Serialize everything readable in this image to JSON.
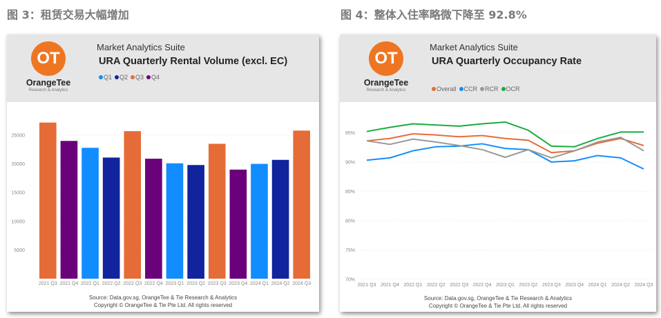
{
  "figures": [
    {
      "label": "图 3：租赁交易大幅增加",
      "suite": "Market Analytics Suite",
      "brand": "OrangeTee",
      "brand_sub": "Research & Analytics",
      "logo_text": "OT",
      "source": "Source: Data.gov.sg, OrangeTee & Tie Research & Analytics",
      "copyright": "Copyright © OrangeTee & Tie Pte Ltd. All rights reserved"
    },
    {
      "label": "图 4：整体入住率略微下降至 92.8%",
      "suite": "Market Analytics Suite",
      "brand": "OrangeTee",
      "brand_sub": "Research & Analytics",
      "logo_text": "OT",
      "source": "Source: Data.gov.sg, OrangeTee & Tie Research & Analytics",
      "copyright": "Copyright © OrangeTee & Tie Pte Ltd. All rights reserved"
    }
  ],
  "chart_data": [
    {
      "type": "bar",
      "title": "URA Quarterly Rental Volume (excl. EC)",
      "categories": [
        "2021 Q3",
        "2021 Q4",
        "2022 Q1",
        "2022 Q2",
        "2022 Q3",
        "2022 Q4",
        "2023 Q1",
        "2023 Q2",
        "2023 Q3",
        "2023 Q4",
        "2024 Q1",
        "2024 Q2",
        "2024 Q3"
      ],
      "values": [
        27200,
        24000,
        22800,
        21100,
        25700,
        20900,
        20100,
        19800,
        23500,
        19000,
        20000,
        20700,
        25800
      ],
      "legend": [
        {
          "name": "Q1",
          "color": "#118dff"
        },
        {
          "name": "Q2",
          "color": "#12239e"
        },
        {
          "name": "Q3",
          "color": "#e66c37"
        },
        {
          "name": "Q4",
          "color": "#6b007b"
        }
      ],
      "yticks": [
        "5000",
        "10000",
        "15000",
        "20000",
        "25000"
      ],
      "ylim": [
        0,
        28000
      ],
      "xlabel": "",
      "ylabel": "",
      "grid": true,
      "legend_position": "top-left"
    },
    {
      "type": "line",
      "title": "URA Quarterly Occupancy Rate",
      "categories": [
        "2021 Q3",
        "2021 Q4",
        "2022 Q1",
        "2022 Q2",
        "2022 Q3",
        "2022 Q4",
        "2023 Q1",
        "2023 Q2",
        "2023 Q3",
        "2023 Q4",
        "2024 Q1",
        "2024 Q2",
        "2024 Q3"
      ],
      "series": [
        {
          "name": "Overall",
          "color": "#e66c37",
          "values": [
            93.6,
            94.0,
            94.8,
            94.6,
            94.3,
            94.5,
            94.0,
            93.7,
            91.6,
            91.9,
            93.2,
            94.0,
            92.8
          ]
        },
        {
          "name": "CCR",
          "color": "#118dff",
          "values": [
            90.3,
            90.7,
            91.9,
            92.6,
            92.7,
            93.1,
            92.3,
            92.1,
            90.0,
            90.2,
            91.1,
            90.7,
            88.8
          ]
        },
        {
          "name": "RCR",
          "color": "#999999",
          "values": [
            93.6,
            93.0,
            93.9,
            93.4,
            92.8,
            92.1,
            90.8,
            92.1,
            90.7,
            91.9,
            93.4,
            94.2,
            91.9
          ]
        },
        {
          "name": "OCR",
          "color": "#1aab40",
          "values": [
            95.2,
            95.9,
            96.5,
            96.3,
            96.1,
            96.5,
            96.8,
            95.4,
            92.7,
            92.6,
            94.0,
            95.1,
            95.1
          ]
        }
      ],
      "yticks": [
        "70%",
        "75%",
        "80%",
        "85%",
        "90%",
        "95%"
      ],
      "ylim": [
        70,
        97.5
      ],
      "xlabel": "",
      "ylabel": "",
      "grid": true,
      "legend_position": "top-left"
    }
  ]
}
